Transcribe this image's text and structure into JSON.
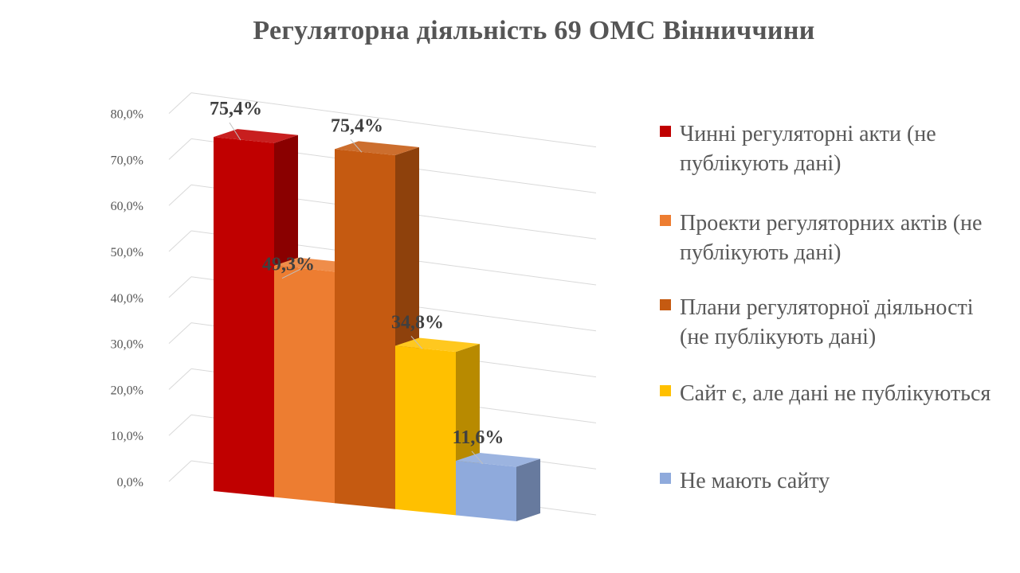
{
  "chart_data": {
    "type": "bar",
    "title": "Регуляторна діяльність 69 ОМС Вінниччини",
    "xlabel": "",
    "ylabel": "",
    "ylim": [
      0,
      80
    ],
    "grid": true,
    "legend_position": "right",
    "y_ticks": [
      "0,0%",
      "10,0%",
      "20,0%",
      "30,0%",
      "40,0%",
      "50,0%",
      "60,0%",
      "70,0%",
      "80,0%"
    ],
    "series": [
      {
        "name": "Чинні регуляторні акти (не публікують дані)",
        "value": 75.4,
        "label": "75,4%",
        "color": "#C00000"
      },
      {
        "name": "Проекти регуляторних актів (не публікують дані)",
        "value": 49.3,
        "label": "49,3%",
        "color": "#ED7D31"
      },
      {
        "name": "Плани регуляторної діяльності (не публікують дані)",
        "value": 75.4,
        "label": "75,4%",
        "color": "#C55A11"
      },
      {
        "name": "Сайт є, але дані не публікуються",
        "value": 34.8,
        "label": "34,8%",
        "color": "#FFC000"
      },
      {
        "name": "Не мають сайту",
        "value": 11.6,
        "label": "11,6%",
        "color": "#8FAADC"
      }
    ]
  }
}
